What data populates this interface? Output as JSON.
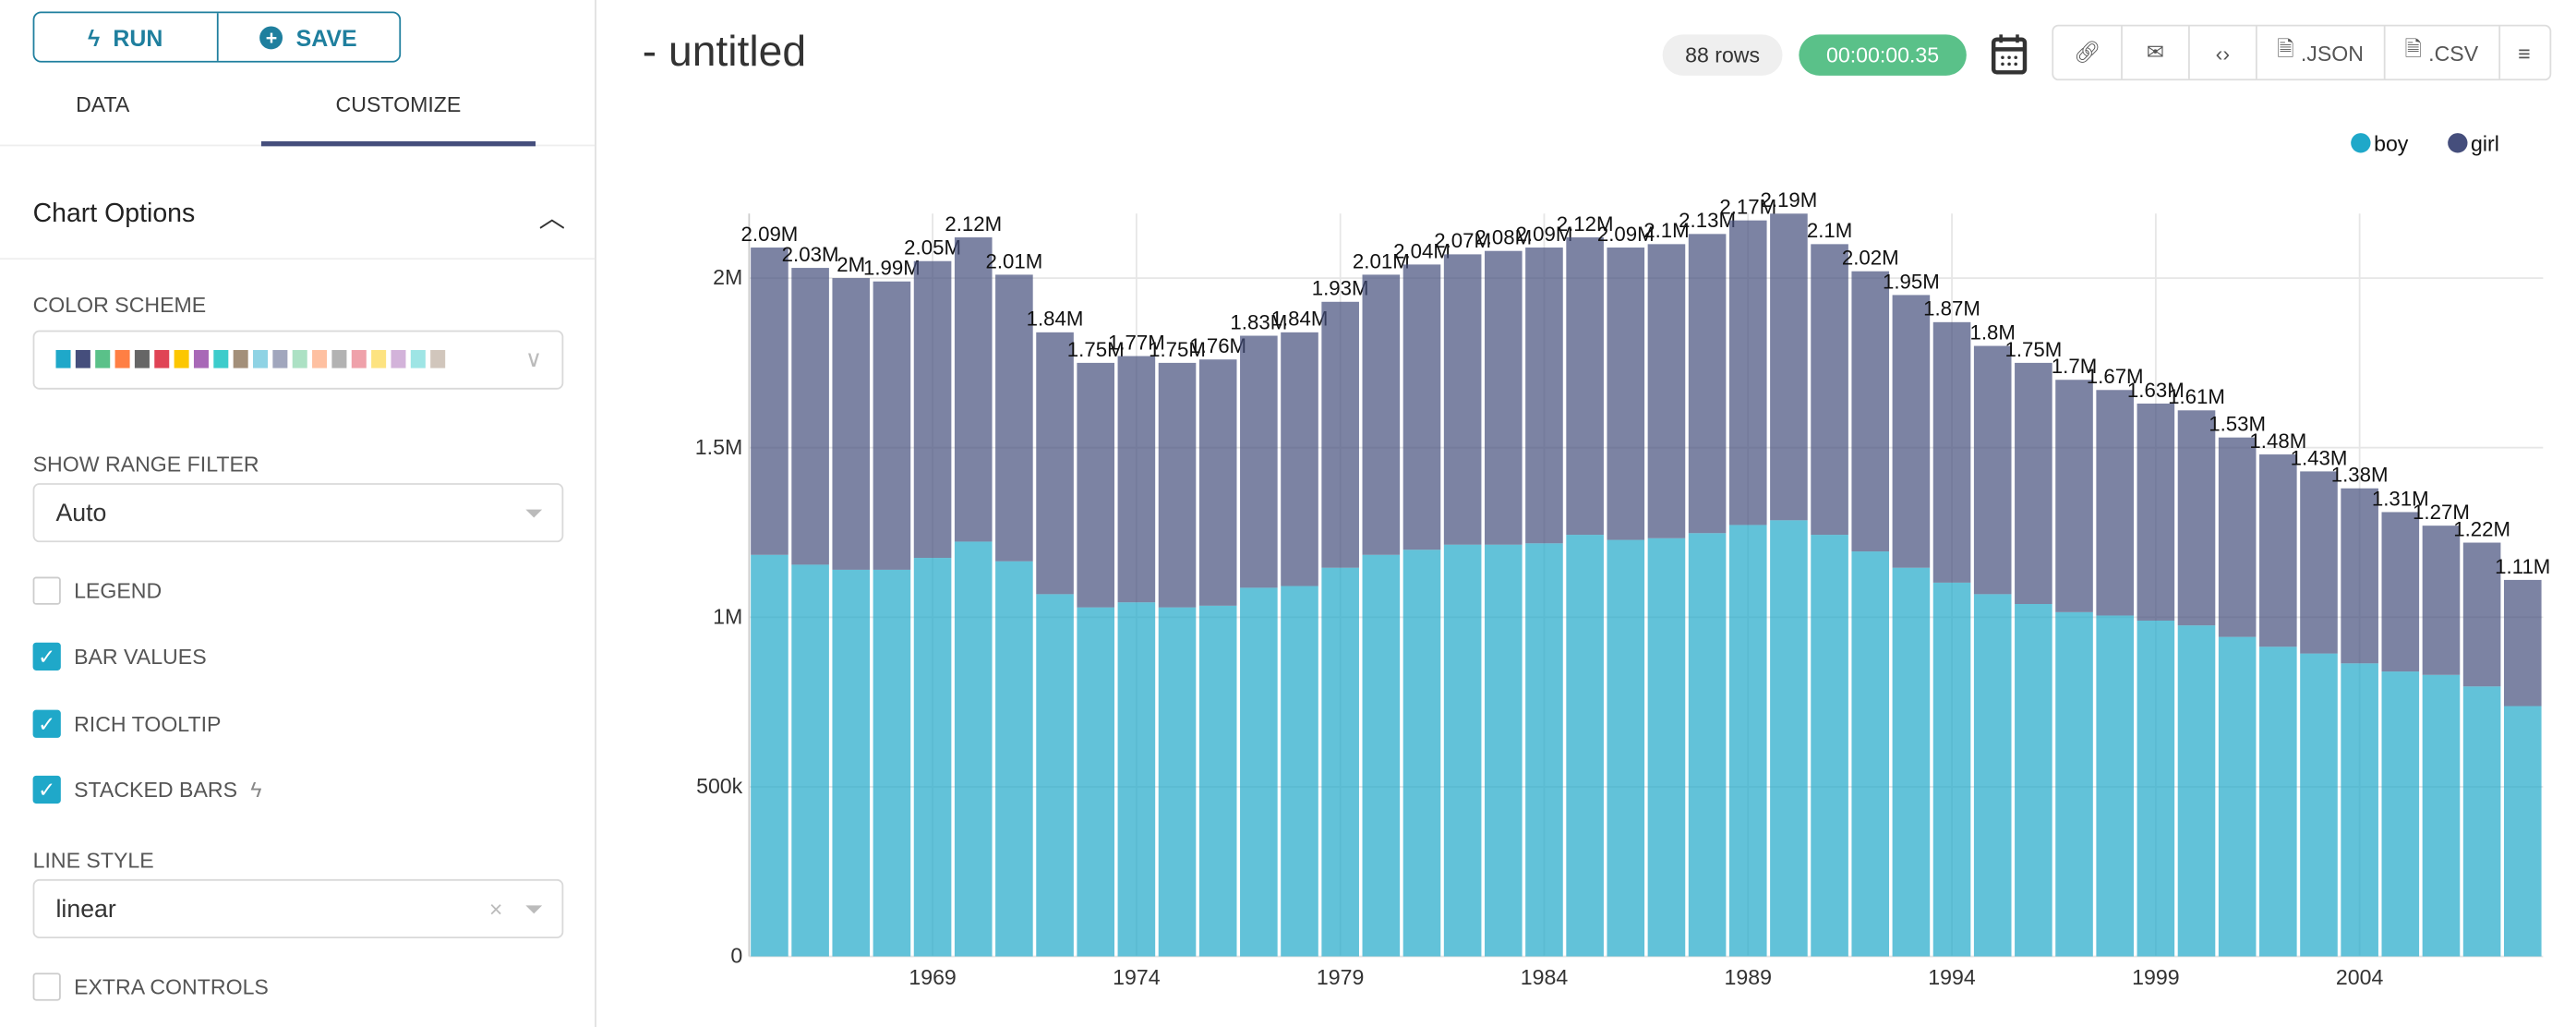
{
  "toolbar": {
    "run": "RUN",
    "save": "SAVE"
  },
  "tabs": [
    {
      "label": "DATA"
    },
    {
      "label": "CUSTOMIZE",
      "active": true
    }
  ],
  "section": {
    "title": "Chart Options"
  },
  "color_scheme": {
    "label": "COLOR SCHEME",
    "colors": [
      "#1FA8C9",
      "#454E7C",
      "#5AC189",
      "#FF7F44",
      "#666666",
      "#E04355",
      "#FCC700",
      "#A868B7",
      "#3CCCCB",
      "#A38F79",
      "#8FD3E4",
      "#A1A6BD",
      "#ACE1C4",
      "#FEC0A1",
      "#B2B2B2",
      "#EFA1AA",
      "#FDE380",
      "#D3B3DA",
      "#9EE5E5",
      "#D1C6BC"
    ]
  },
  "range_filter": {
    "label": "SHOW RANGE FILTER",
    "value": "Auto"
  },
  "checkboxes": [
    {
      "label": "LEGEND",
      "checked": false
    },
    {
      "label": "BAR VALUES",
      "checked": true
    },
    {
      "label": "RICH TOOLTIP",
      "checked": true
    },
    {
      "label": "STACKED BARS",
      "checked": true
    }
  ],
  "line_style": {
    "label": "LINE STYLE",
    "value": "linear"
  },
  "extra_controls": {
    "label": "EXTRA CONTROLS",
    "checked": false
  },
  "header": {
    "title": "- untitled",
    "rows": "88 rows",
    "timer": "00:00:00.35",
    "json": ".JSON",
    "csv": ".CSV"
  },
  "colors": {
    "accent": "#1f7f9e",
    "timer": "#5AC189",
    "boy": "#1FA8C9",
    "girl": "#454E7C"
  },
  "chart_data": {
    "type": "bar",
    "stacked": true,
    "grid": true,
    "legend_placement": "top-right",
    "categories": [
      1965,
      1966,
      1967,
      1968,
      1969,
      1970,
      1971,
      1972,
      1973,
      1974,
      1975,
      1976,
      1977,
      1978,
      1979,
      1980,
      1981,
      1982,
      1983,
      1984,
      1985,
      1986,
      1987,
      1988,
      1989,
      1990,
      1991,
      1992,
      1993,
      1994,
      1995,
      1996,
      1997,
      1998,
      1999,
      2000,
      2001,
      2002,
      2003,
      2004,
      2005,
      2006,
      2007,
      2008
    ],
    "xticks": [
      "1969",
      "1974",
      "1979",
      "1984",
      "1989",
      "1994",
      "1999",
      "2004"
    ],
    "yticks": [
      "0",
      "500k",
      "1M",
      "1.5M",
      "2M"
    ],
    "ylim": [
      0,
      2190000
    ],
    "totals_labels": [
      "2.09M",
      "2.03M",
      "2M",
      "1.99M",
      "2.05M",
      "2.12M",
      "2.01M",
      "1.84M",
      "1.75M",
      "1.77M",
      "1.75M",
      "1.76M",
      "1.83M",
      "1.84M",
      "1.93M",
      "2.01M",
      "2.04M",
      "2.07M",
      "2.08M",
      "2.09M",
      "2.12M",
      "2.09M",
      "2.1M",
      "2.13M",
      "2.17M",
      "2.19M",
      "2.1M",
      "2.02M",
      "1.95M",
      "1.87M",
      "1.8M",
      "1.75M",
      "1.7M",
      "1.67M",
      "1.63M",
      "1.61M",
      "1.53M",
      "1.48M",
      "1.43M",
      "1.38M",
      "1.31M",
      "1.27M",
      "1.22M",
      "1.11M"
    ],
    "series": [
      {
        "name": "boy",
        "values": [
          1184000,
          1155000,
          1140000,
          1140000,
          1175000,
          1223000,
          1165000,
          1068000,
          1029000,
          1044000,
          1029000,
          1034000,
          1087000,
          1092000,
          1146000,
          1184000,
          1199000,
          1214000,
          1214000,
          1218000,
          1243000,
          1228000,
          1233000,
          1248000,
          1272000,
          1286000,
          1243000,
          1194000,
          1146000,
          1102000,
          1068000,
          1039000,
          1015000,
          1005000,
          990000,
          976000,
          942000,
          913000,
          893000,
          864000,
          840000,
          830000,
          796000,
          738000
        ]
      },
      {
        "name": "girl",
        "values": [
          906000,
          875000,
          860000,
          850000,
          875000,
          897000,
          845000,
          772000,
          721000,
          726000,
          721000,
          726000,
          743000,
          748000,
          784000,
          826000,
          841000,
          856000,
          866000,
          872000,
          877000,
          862000,
          867000,
          882000,
          898000,
          904000,
          857000,
          826000,
          804000,
          768000,
          732000,
          711000,
          685000,
          665000,
          640000,
          634000,
          588000,
          567000,
          537000,
          516000,
          470000,
          440000,
          424000,
          372000
        ]
      }
    ]
  }
}
